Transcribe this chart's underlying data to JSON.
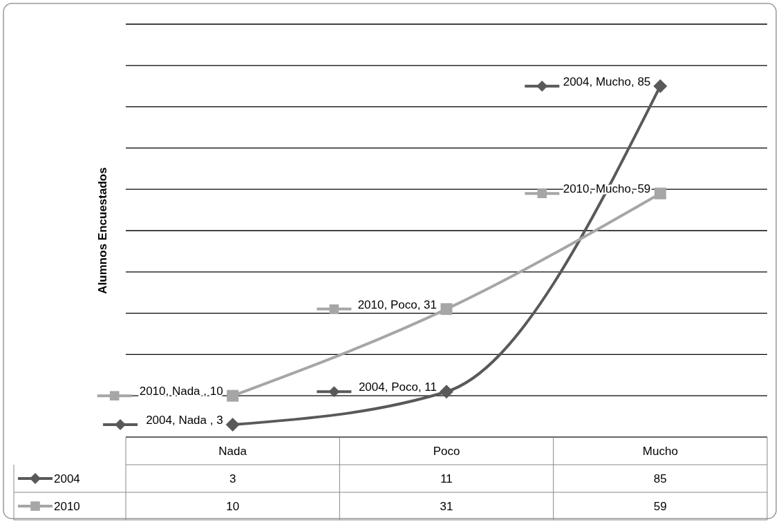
{
  "chart_data": {
    "type": "line",
    "ylabel": "Alumnos Encuestados",
    "categories": [
      "Nada",
      "Poco",
      "Mucho"
    ],
    "series": [
      {
        "name": "2004",
        "color": "#595959",
        "values": [
          3,
          11,
          85
        ],
        "marker": "diamond"
      },
      {
        "name": "2010",
        "color": "#a6a6a6",
        "values": [
          10,
          31,
          59
        ],
        "marker": "square"
      }
    ],
    "annotations": [
      {
        "text": "2004, Nada , 3",
        "x": "Nada",
        "y": 3
      },
      {
        "text": "2004, Poco, 11",
        "x": "Poco",
        "y": 11
      },
      {
        "text": "2004, Mucho, 85",
        "x": "Mucho",
        "y": 85
      },
      {
        "text": "2010, Nada , 10",
        "x": "Nada",
        "y": 10
      },
      {
        "text": "2010, Poco, 31",
        "x": "Poco",
        "y": 31
      },
      {
        "text": "2010, Mucho, 59",
        "x": "Mucho",
        "y": 59
      }
    ],
    "ylim": [
      0,
      100
    ],
    "yticks": [
      {
        "value": 0,
        "label": null
      },
      {
        "value": 10,
        "label": null
      },
      {
        "value": 20,
        "label": null
      },
      {
        "value": 30,
        "label": null
      },
      {
        "value": 40,
        "label": null
      },
      {
        "value": 50,
        "label": null
      },
      {
        "value": 60,
        "label": null
      },
      {
        "value": 70,
        "label": null
      },
      {
        "value": 80,
        "label": null
      },
      {
        "value": 90,
        "label": null
      },
      {
        "value": 100,
        "label": null
      }
    ],
    "grid": "y",
    "tick_labels": "x",
    "legend": "bottom",
    "data_labels": true
  }
}
